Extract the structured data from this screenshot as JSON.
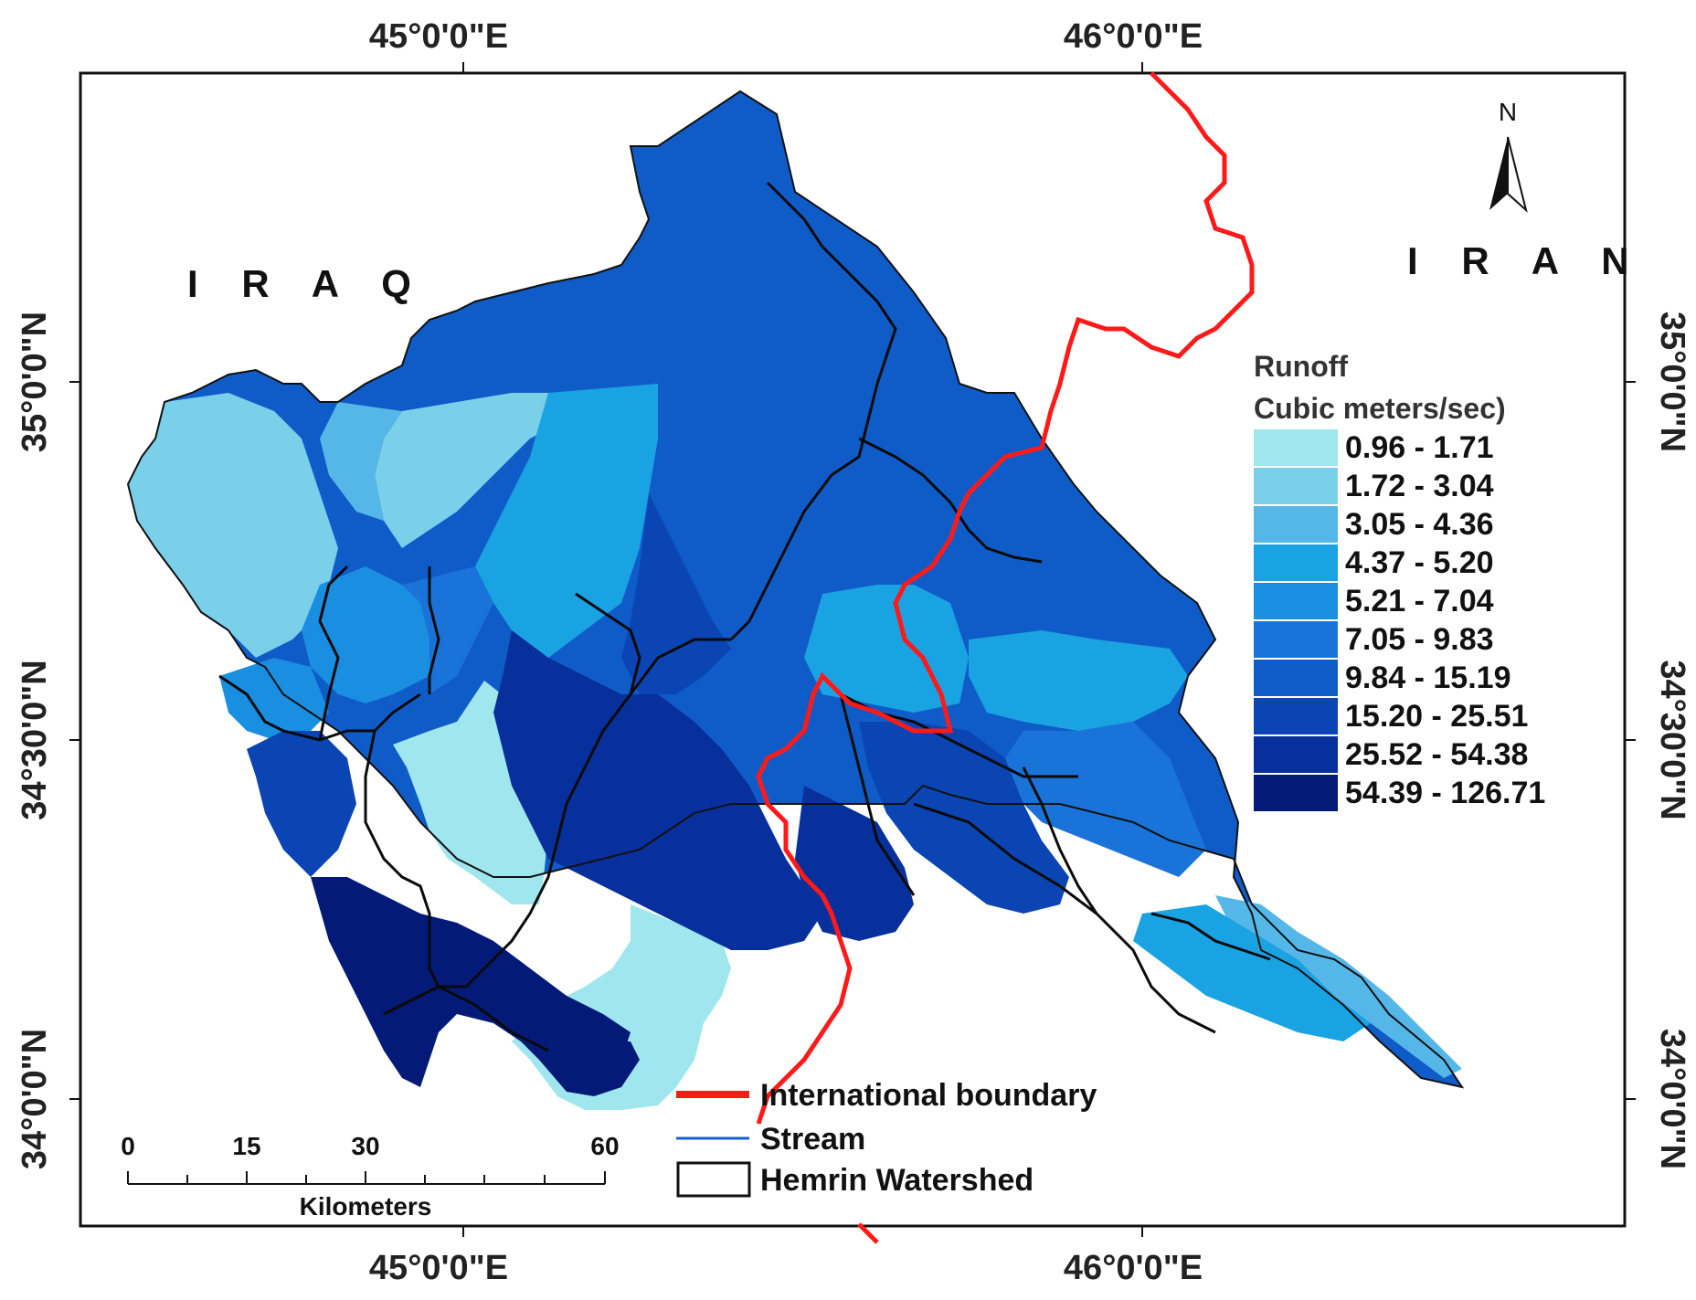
{
  "map": {
    "lon_ticks": [
      "45°0'0\"E",
      "46°0'0\"E"
    ],
    "lat_ticks": [
      "35°0'0\"N",
      "34°30'0\"N",
      "34°0'0\"N"
    ],
    "countries": [
      "I R A Q",
      "I R A N"
    ],
    "north_arrow": "N"
  },
  "legend": {
    "title_line1": "Runoff",
    "title_line2": "Cubic meters/sec)",
    "classes": [
      {
        "label": "0.96 - 1.71",
        "color": "#9fe6ef"
      },
      {
        "label": "1.72 - 3.04",
        "color": "#7acfe9"
      },
      {
        "label": "3.05 - 4.36",
        "color": "#55b7e8"
      },
      {
        "label": "4.37 - 5.20",
        "color": "#1aa3e3"
      },
      {
        "label": "5.21 - 7.04",
        "color": "#1a8ee0"
      },
      {
        "label": "7.05 - 9.83",
        "color": "#1a73d8"
      },
      {
        "label": "9.84 - 15.19",
        "color": "#0f5cc8"
      },
      {
        "label": "15.20 - 25.51",
        "color": "#0a45b3"
      },
      {
        "label": "25.52 - 54.38",
        "color": "#08309c"
      },
      {
        "label": "54.39 - 126.71",
        "color": "#031a78"
      }
    ]
  },
  "bottom_legend": {
    "boundary": "International boundary",
    "stream": "Stream",
    "watershed": "Hemrin Watershed",
    "boundary_color": "#ff1a1a",
    "stream_color": "#1a5fd0"
  },
  "scale_bar": {
    "ticks": [
      "0",
      "15",
      "30",
      "60"
    ],
    "unit": "Kilometers"
  }
}
